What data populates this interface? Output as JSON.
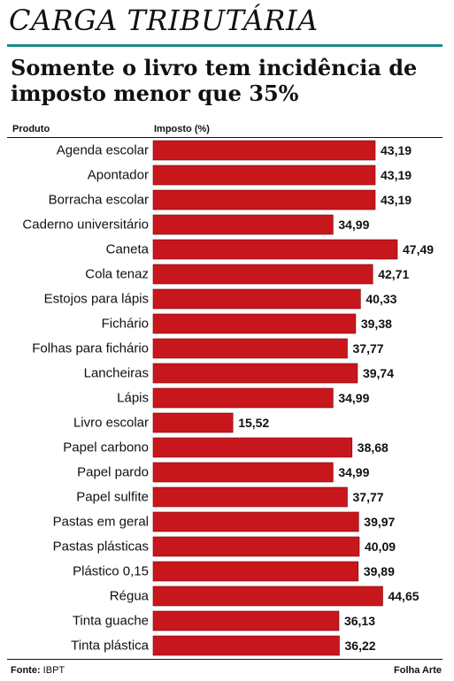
{
  "header": {
    "kicker": "CARGA TRIBUTÁRIA",
    "headline": "Somente o livro tem incidência de imposto menor que 35%"
  },
  "columns": {
    "product": "Produto",
    "tax": "Imposto (%)"
  },
  "footer": {
    "source_label": "Fonte:",
    "source_value": "IBPT",
    "credit": "Folha Arte"
  },
  "colors": {
    "bar": "#c8161d",
    "bar_stroke": "#7a0a0e",
    "accent_rule": "#1a8a86",
    "text": "#111111"
  },
  "chart_data": {
    "type": "bar",
    "orientation": "horizontal",
    "categories": [
      "Agenda escolar",
      "Apontador",
      "Borracha escolar",
      "Caderno universitário",
      "Caneta",
      "Cola tenaz",
      "Estojos para lápis",
      "Fichário",
      "Folhas para fichário",
      "Lancheiras",
      "Lápis",
      "Livro escolar",
      "Papel carbono",
      "Papel pardo",
      "Papel sulfite",
      "Pastas em geral",
      "Pastas plásticas",
      "Plástico 0,15",
      "Régua",
      "Tinta guache",
      "Tinta plástica"
    ],
    "values": [
      43.19,
      43.19,
      43.19,
      34.99,
      47.49,
      42.71,
      40.33,
      39.38,
      37.77,
      39.74,
      34.99,
      15.52,
      38.68,
      34.99,
      37.77,
      39.97,
      40.09,
      39.89,
      44.65,
      36.13,
      36.22
    ],
    "value_labels": [
      "43,19",
      "43,19",
      "43,19",
      "34,99",
      "47,49",
      "42,71",
      "40,33",
      "39,38",
      "37,77",
      "39,74",
      "34,99",
      "15,52",
      "38,68",
      "34,99",
      "37,77",
      "39,97",
      "40,09",
      "39,89",
      "44,65",
      "36,13",
      "36,22"
    ],
    "title": "Somente o livro tem incidência de imposto menor que 35%",
    "xlabel": "Imposto (%)",
    "ylabel": "Produto",
    "xlim": [
      0,
      47.49
    ],
    "grid": false,
    "legend": "none"
  }
}
